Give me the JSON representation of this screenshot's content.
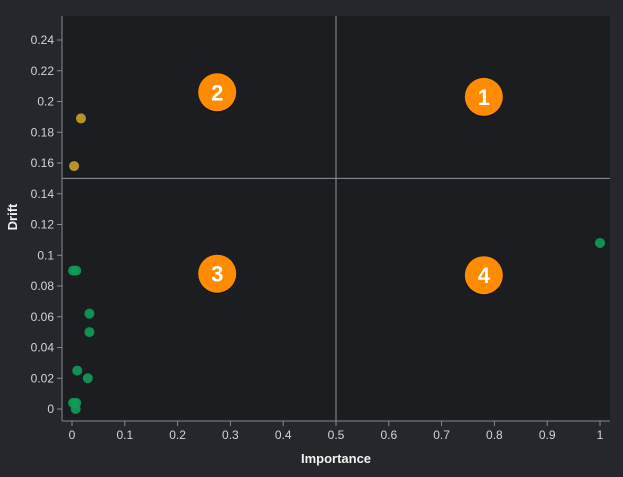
{
  "colors": {
    "background": "#25272c",
    "plot_background": "#1c1d21",
    "axis": "#8a8a8a",
    "divider": "#8f9399",
    "badge": "#ff8c00",
    "badge_text": "#ffffff",
    "high_drift": "#c9a227",
    "low_drift": "#0f9d58"
  },
  "chart_data": {
    "type": "scatter",
    "xlabel": "Importance",
    "ylabel": "Drift",
    "xlim": [
      0,
      1
    ],
    "ylim": [
      0,
      0.25
    ],
    "x_ticks": [
      "0",
      "0.1",
      "0.2",
      "0.3",
      "0.4",
      "0.5",
      "0.6",
      "0.7",
      "0.8",
      "0.9",
      "1"
    ],
    "y_ticks": [
      "0",
      "0.02",
      "0.04",
      "0.06",
      "0.08",
      "0.1",
      "0.12",
      "0.14",
      "0.16",
      "0.18",
      "0.2",
      "0.22",
      "0.24"
    ],
    "x_tick_values": [
      0,
      0.1,
      0.2,
      0.3,
      0.4,
      0.5,
      0.6,
      0.7,
      0.8,
      0.9,
      1
    ],
    "y_tick_values": [
      0,
      0.02,
      0.04,
      0.06,
      0.08,
      0.1,
      0.12,
      0.14,
      0.16,
      0.18,
      0.2,
      0.22,
      0.24
    ],
    "thresholds": {
      "x": 0.5,
      "y": 0.15
    },
    "grid": false,
    "quadrants": [
      {
        "label": "1",
        "x": 0.78,
        "y": 0.203
      },
      {
        "label": "2",
        "x": 0.275,
        "y": 0.206
      },
      {
        "label": "3",
        "x": 0.275,
        "y": 0.088
      },
      {
        "label": "4",
        "x": 0.78,
        "y": 0.087
      }
    ],
    "points": [
      {
        "x": 0.017,
        "y": 0.189,
        "group": "high_drift"
      },
      {
        "x": 0.004,
        "y": 0.158,
        "group": "high_drift"
      },
      {
        "x": 1.0,
        "y": 0.108,
        "group": "low_drift"
      },
      {
        "x": 0.002,
        "y": 0.09,
        "group": "low_drift"
      },
      {
        "x": 0.008,
        "y": 0.09,
        "group": "low_drift"
      },
      {
        "x": 0.033,
        "y": 0.062,
        "group": "low_drift"
      },
      {
        "x": 0.033,
        "y": 0.05,
        "group": "low_drift"
      },
      {
        "x": 0.01,
        "y": 0.025,
        "group": "low_drift"
      },
      {
        "x": 0.03,
        "y": 0.02,
        "group": "low_drift"
      },
      {
        "x": 0.002,
        "y": 0.004,
        "group": "low_drift"
      },
      {
        "x": 0.008,
        "y": 0.004,
        "group": "low_drift"
      },
      {
        "x": 0.007,
        "y": 0.0,
        "group": "low_drift"
      }
    ]
  }
}
